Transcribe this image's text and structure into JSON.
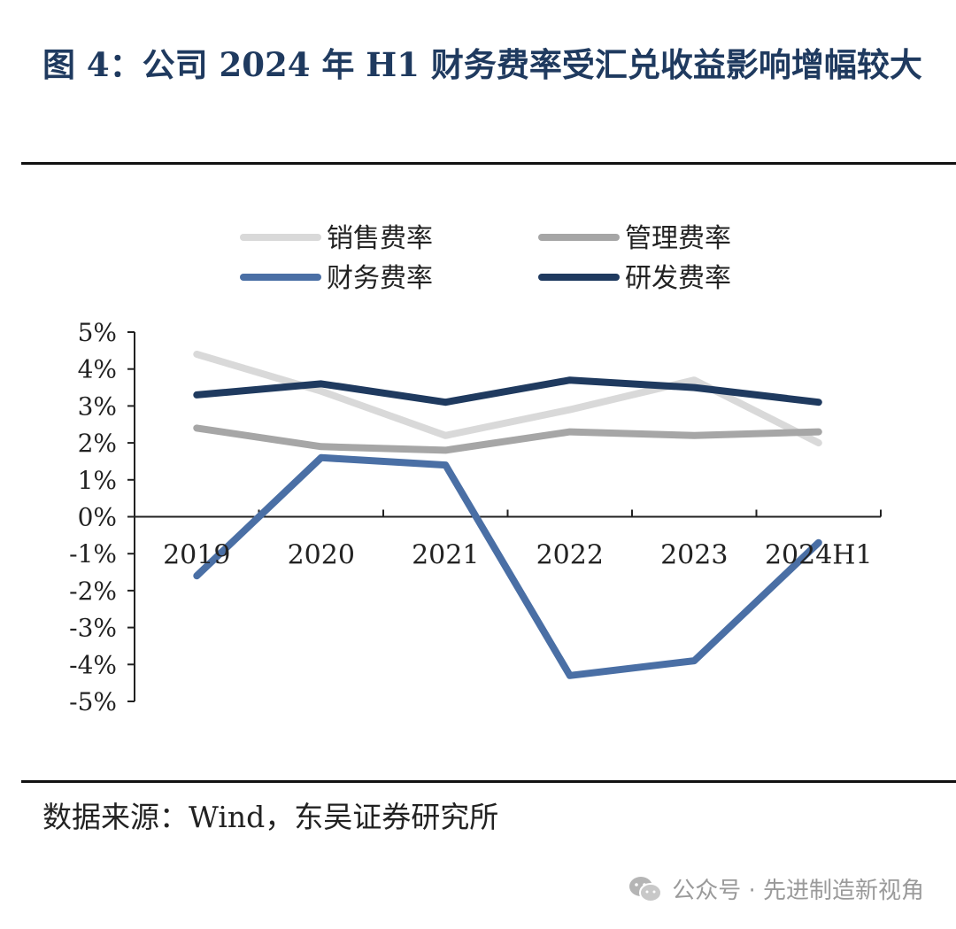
{
  "figure": {
    "title": "图 4：公司 2024 年 H1 财务费率受汇兑收益影响增幅较大",
    "source": "数据来源：Wind，东吴证券研究所"
  },
  "watermark": {
    "text": "公众号 · 先进制造新视角",
    "icon": "wechat-icon"
  },
  "chart_data": {
    "type": "line",
    "categories": [
      "2019",
      "2020",
      "2021",
      "2022",
      "2023",
      "2024H1"
    ],
    "y_ticks": [
      "5%",
      "4%",
      "3%",
      "2%",
      "1%",
      "0%",
      "-1%",
      "-2%",
      "-3%",
      "-4%",
      "-5%"
    ],
    "ylim": [
      -5,
      5
    ],
    "y_unit": "%",
    "grid": false,
    "legend_position": "top",
    "series": [
      {
        "name": "销售费率",
        "color": "#d9d9d9",
        "values": [
          4.4,
          3.4,
          2.2,
          2.9,
          3.7,
          2.0
        ]
      },
      {
        "name": "管理费率",
        "color": "#a6a6a6",
        "values": [
          2.4,
          1.9,
          1.8,
          2.3,
          2.2,
          2.3
        ]
      },
      {
        "name": "财务费率",
        "color": "#4a6fa5",
        "values": [
          -1.6,
          1.6,
          1.4,
          -4.3,
          -3.9,
          -0.7
        ]
      },
      {
        "name": "研发费率",
        "color": "#1f3a5f",
        "values": [
          3.3,
          3.6,
          3.1,
          3.7,
          3.5,
          3.1
        ]
      }
    ]
  }
}
